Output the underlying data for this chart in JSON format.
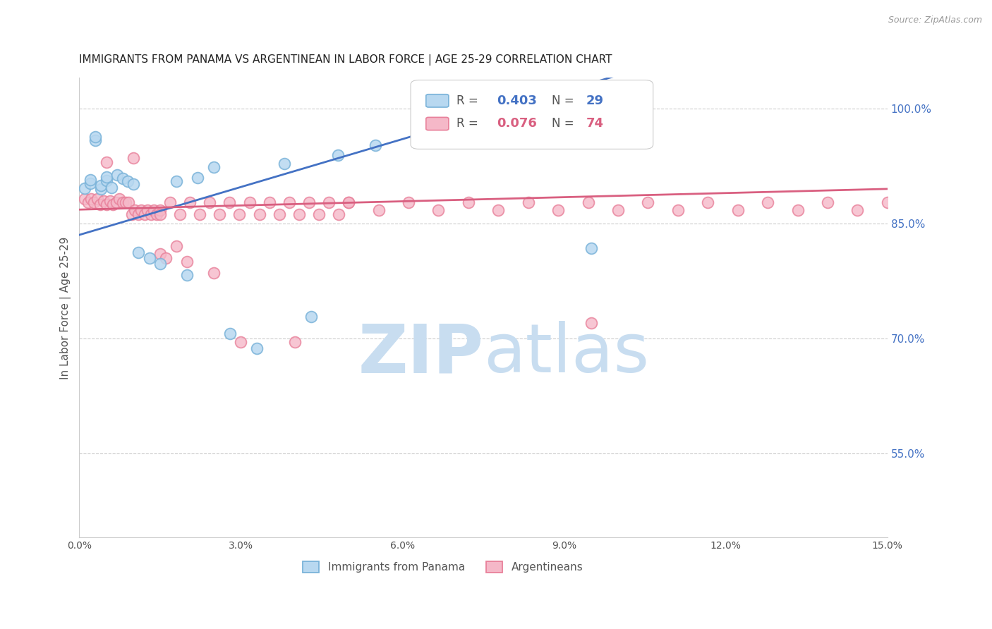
{
  "title": "IMMIGRANTS FROM PANAMA VS ARGENTINEAN IN LABOR FORCE | AGE 25-29 CORRELATION CHART",
  "source": "Source: ZipAtlas.com",
  "ylabel": "In Labor Force | Age 25-29",
  "xlim": [
    0.0,
    0.15
  ],
  "ylim": [
    0.44,
    1.04
  ],
  "yticks": [
    0.55,
    0.7,
    0.85,
    1.0
  ],
  "xticks": [
    0.0,
    0.03,
    0.06,
    0.09,
    0.12,
    0.15
  ],
  "panama_color": "#7ab3d9",
  "panama_fill": "#b8d8f0",
  "argentina_color": "#e8809a",
  "argentina_fill": "#f5b8c8",
  "panama_R": 0.403,
  "panama_N": 29,
  "argentina_R": 0.076,
  "argentina_N": 74,
  "legend_label1": "Immigrants from Panama",
  "legend_label2": "Argentineans",
  "background_color": "#ffffff",
  "grid_color": "#cccccc",
  "title_color": "#222222",
  "axis_label_color": "#555555",
  "right_axis_color": "#4472c4",
  "watermark_zip": "ZIP",
  "watermark_atlas": "atlas",
  "watermark_color_zip": "#c8ddf0",
  "watermark_color_atlas": "#c8ddf0"
}
